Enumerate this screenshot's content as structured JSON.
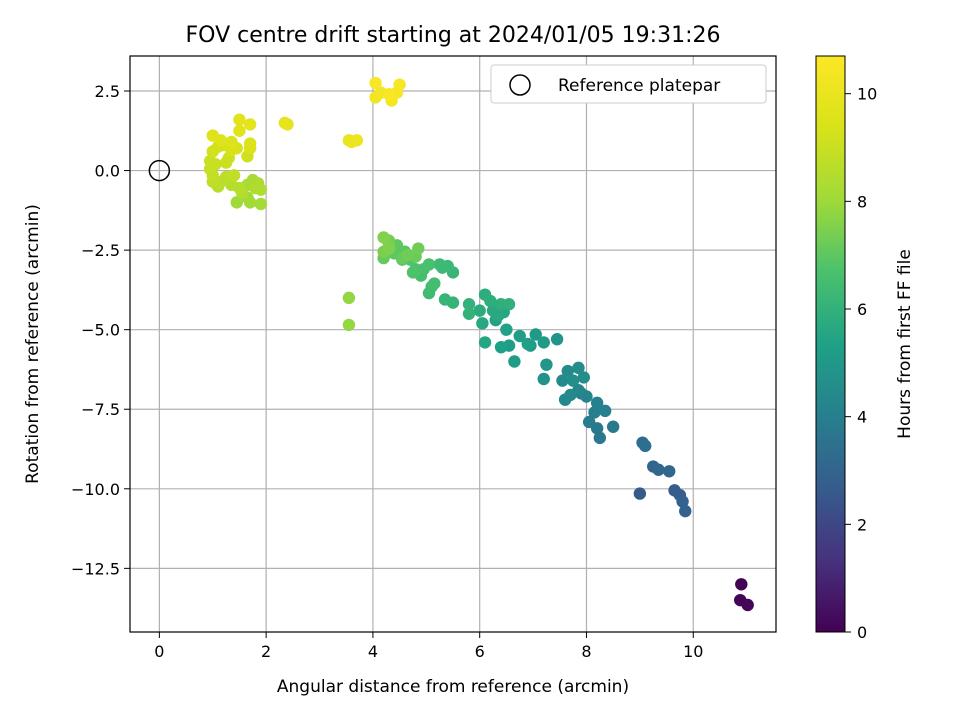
{
  "chart_data": {
    "type": "scatter",
    "title": "FOV centre drift starting at 2024/01/05 19:31:26",
    "xlabel": "Angular distance from reference (arcmin)",
    "ylabel": "Rotation from reference (arcmin)",
    "xlim": [
      -0.55,
      11.55
    ],
    "ylim": [
      -14.5,
      3.6
    ],
    "xticks": [
      0,
      2,
      4,
      6,
      8,
      10
    ],
    "yticks": [
      2.5,
      0.0,
      -2.5,
      -5.0,
      -7.5,
      -10.0,
      -12.5
    ],
    "xtick_labels": [
      "0",
      "2",
      "4",
      "6",
      "8",
      "10"
    ],
    "ytick_labels": [
      "2.5",
      "0.0",
      "−2.5",
      "−5.0",
      "−7.5",
      "−10.0",
      "−12.5"
    ],
    "grid": true,
    "legend": {
      "placement": "top-right",
      "entries": [
        "Reference platepar"
      ]
    },
    "reference_point": {
      "x": 0,
      "y": 0
    },
    "colorbar": {
      "label": "Hours from first FF file",
      "range": [
        0,
        10.7
      ],
      "ticks": [
        0,
        2,
        4,
        6,
        8,
        10
      ],
      "tick_labels": [
        "0",
        "2",
        "4",
        "6",
        "8",
        "10"
      ],
      "colormap": "viridis"
    },
    "points": [
      [
        10.9,
        -13.0,
        0.05
      ],
      [
        10.88,
        -13.5,
        0.1
      ],
      [
        11.02,
        -13.65,
        0.15
      ],
      [
        9.0,
        -10.15,
        2.6
      ],
      [
        9.65,
        -10.05,
        2.7
      ],
      [
        9.75,
        -10.2,
        2.8
      ],
      [
        9.8,
        -10.4,
        2.85
      ],
      [
        9.85,
        -10.7,
        2.9
      ],
      [
        9.25,
        -9.3,
        3.0
      ],
      [
        9.35,
        -9.4,
        3.05
      ],
      [
        9.55,
        -9.45,
        3.1
      ],
      [
        9.05,
        -8.55,
        3.3
      ],
      [
        9.1,
        -8.65,
        3.35
      ],
      [
        8.25,
        -8.4,
        3.7
      ],
      [
        8.5,
        -8.05,
        3.75
      ],
      [
        8.2,
        -8.1,
        3.8
      ],
      [
        8.05,
        -7.9,
        3.85
      ],
      [
        8.15,
        -7.6,
        4.0
      ],
      [
        8.35,
        -7.55,
        4.05
      ],
      [
        8.2,
        -7.3,
        4.1
      ],
      [
        7.9,
        -7.0,
        4.15
      ],
      [
        8.0,
        -7.1,
        4.2
      ],
      [
        7.85,
        -6.9,
        4.3
      ],
      [
        7.6,
        -7.2,
        4.35
      ],
      [
        7.7,
        -7.05,
        4.4
      ],
      [
        7.55,
        -6.6,
        4.45
      ],
      [
        7.65,
        -6.3,
        4.5
      ],
      [
        7.85,
        -6.2,
        4.55
      ],
      [
        7.95,
        -6.5,
        4.6
      ],
      [
        7.75,
        -6.6,
        4.65
      ],
      [
        7.2,
        -6.55,
        4.75
      ],
      [
        7.45,
        -5.3,
        4.85
      ],
      [
        7.25,
        -6.1,
        4.9
      ],
      [
        6.95,
        -5.5,
        5.0
      ],
      [
        7.05,
        -5.15,
        5.05
      ],
      [
        7.2,
        -5.4,
        5.1
      ],
      [
        6.65,
        -6.0,
        5.15
      ],
      [
        6.55,
        -5.5,
        5.2
      ],
      [
        6.75,
        -5.2,
        5.25
      ],
      [
        6.9,
        -5.45,
        5.3
      ],
      [
        6.4,
        -5.55,
        5.35
      ],
      [
        6.5,
        -5.0,
        5.4
      ],
      [
        6.3,
        -4.7,
        5.45
      ],
      [
        6.45,
        -4.45,
        5.5
      ],
      [
        6.1,
        -5.4,
        5.55
      ],
      [
        6.05,
        -4.8,
        5.6
      ],
      [
        6.25,
        -4.4,
        5.65
      ],
      [
        6.35,
        -4.55,
        5.7
      ],
      [
        6.0,
        -4.4,
        5.75
      ],
      [
        6.1,
        -3.9,
        5.8
      ],
      [
        6.2,
        -4.1,
        5.85
      ],
      [
        6.4,
        -4.2,
        5.9
      ],
      [
        6.55,
        -4.2,
        5.95
      ],
      [
        5.8,
        -4.2,
        6.0
      ],
      [
        5.8,
        -4.5,
        6.05
      ],
      [
        5.5,
        -4.15,
        6.1
      ],
      [
        5.35,
        -4.05,
        6.15
      ],
      [
        5.5,
        -3.2,
        6.2
      ],
      [
        5.4,
        -3.0,
        6.25
      ],
      [
        5.3,
        -3.05,
        6.3
      ],
      [
        5.25,
        -2.95,
        6.35
      ],
      [
        5.1,
        -3.65,
        6.4
      ],
      [
        5.05,
        -3.85,
        6.45
      ],
      [
        5.15,
        -3.55,
        6.5
      ],
      [
        4.9,
        -3.3,
        6.55
      ],
      [
        4.95,
        -3.1,
        6.6
      ],
      [
        5.05,
        -2.95,
        6.65
      ],
      [
        4.8,
        -3.1,
        6.7
      ],
      [
        4.75,
        -3.2,
        6.75
      ],
      [
        4.7,
        -2.8,
        6.8
      ],
      [
        4.55,
        -2.8,
        6.85
      ],
      [
        4.6,
        -2.55,
        6.9
      ],
      [
        4.4,
        -2.6,
        6.95
      ],
      [
        4.45,
        -2.35,
        7.0
      ],
      [
        4.3,
        -2.55,
        7.05
      ],
      [
        4.2,
        -2.75,
        7.1
      ],
      [
        4.55,
        -2.75,
        7.15
      ],
      [
        4.8,
        -2.7,
        7.2
      ],
      [
        4.85,
        -2.45,
        7.25
      ],
      [
        4.65,
        -2.65,
        7.3
      ],
      [
        4.3,
        -2.2,
        7.35
      ],
      [
        4.3,
        -2.3,
        7.4
      ],
      [
        4.2,
        -2.55,
        7.45
      ],
      [
        4.3,
        -2.45,
        7.5
      ],
      [
        4.2,
        -2.1,
        7.55
      ],
      [
        3.55,
        -4.0,
        7.8
      ],
      [
        3.55,
        -4.85,
        7.85
      ],
      [
        1.45,
        -1.0,
        8.0
      ],
      [
        1.65,
        -0.85,
        8.05
      ],
      [
        1.7,
        -1.0,
        8.1
      ],
      [
        1.9,
        -1.05,
        8.15
      ],
      [
        1.65,
        -0.45,
        8.2
      ],
      [
        1.75,
        -0.3,
        8.25
      ],
      [
        1.85,
        -0.4,
        8.3
      ],
      [
        1.9,
        -0.6,
        8.35
      ],
      [
        1.8,
        -0.55,
        8.4
      ],
      [
        1.55,
        -0.7,
        8.45
      ],
      [
        1.5,
        -0.55,
        8.5
      ],
      [
        1.35,
        -0.45,
        8.55
      ],
      [
        1.1,
        -0.5,
        8.6
      ],
      [
        1.15,
        -0.35,
        8.65
      ],
      [
        1.25,
        -0.2,
        8.7
      ],
      [
        1.0,
        -0.35,
        8.75
      ],
      [
        1.4,
        -0.15,
        8.8
      ],
      [
        1.0,
        -0.15,
        8.85
      ],
      [
        0.95,
        0.05,
        8.9
      ],
      [
        1.05,
        0.2,
        8.95
      ],
      [
        0.95,
        0.3,
        9.0
      ],
      [
        1.25,
        0.25,
        9.05
      ],
      [
        1.3,
        0.4,
        9.1
      ],
      [
        1.65,
        0.45,
        9.15
      ],
      [
        1.0,
        0.6,
        9.2
      ],
      [
        1.1,
        0.75,
        9.25
      ],
      [
        1.2,
        0.8,
        9.3
      ],
      [
        1.35,
        0.65,
        9.35
      ],
      [
        1.45,
        0.7,
        9.4
      ],
      [
        1.7,
        0.7,
        9.45
      ],
      [
        1.7,
        0.85,
        9.5
      ],
      [
        1.35,
        0.9,
        9.55
      ],
      [
        1.15,
        0.95,
        9.6
      ],
      [
        1.0,
        1.1,
        9.65
      ],
      [
        1.5,
        1.25,
        9.7
      ],
      [
        1.5,
        1.6,
        9.75
      ],
      [
        1.7,
        1.45,
        9.8
      ],
      [
        2.35,
        1.5,
        9.85
      ],
      [
        2.4,
        1.45,
        9.9
      ],
      [
        3.55,
        0.95,
        10.0
      ],
      [
        3.6,
        0.9,
        10.05
      ],
      [
        3.7,
        0.95,
        10.1
      ],
      [
        4.05,
        2.3,
        10.3
      ],
      [
        4.15,
        2.45,
        10.35
      ],
      [
        4.35,
        2.2,
        10.4
      ],
      [
        4.45,
        2.45,
        10.45
      ],
      [
        4.5,
        2.7,
        10.5
      ],
      [
        4.05,
        2.75,
        10.55
      ],
      [
        4.3,
        2.4,
        10.6
      ]
    ]
  }
}
